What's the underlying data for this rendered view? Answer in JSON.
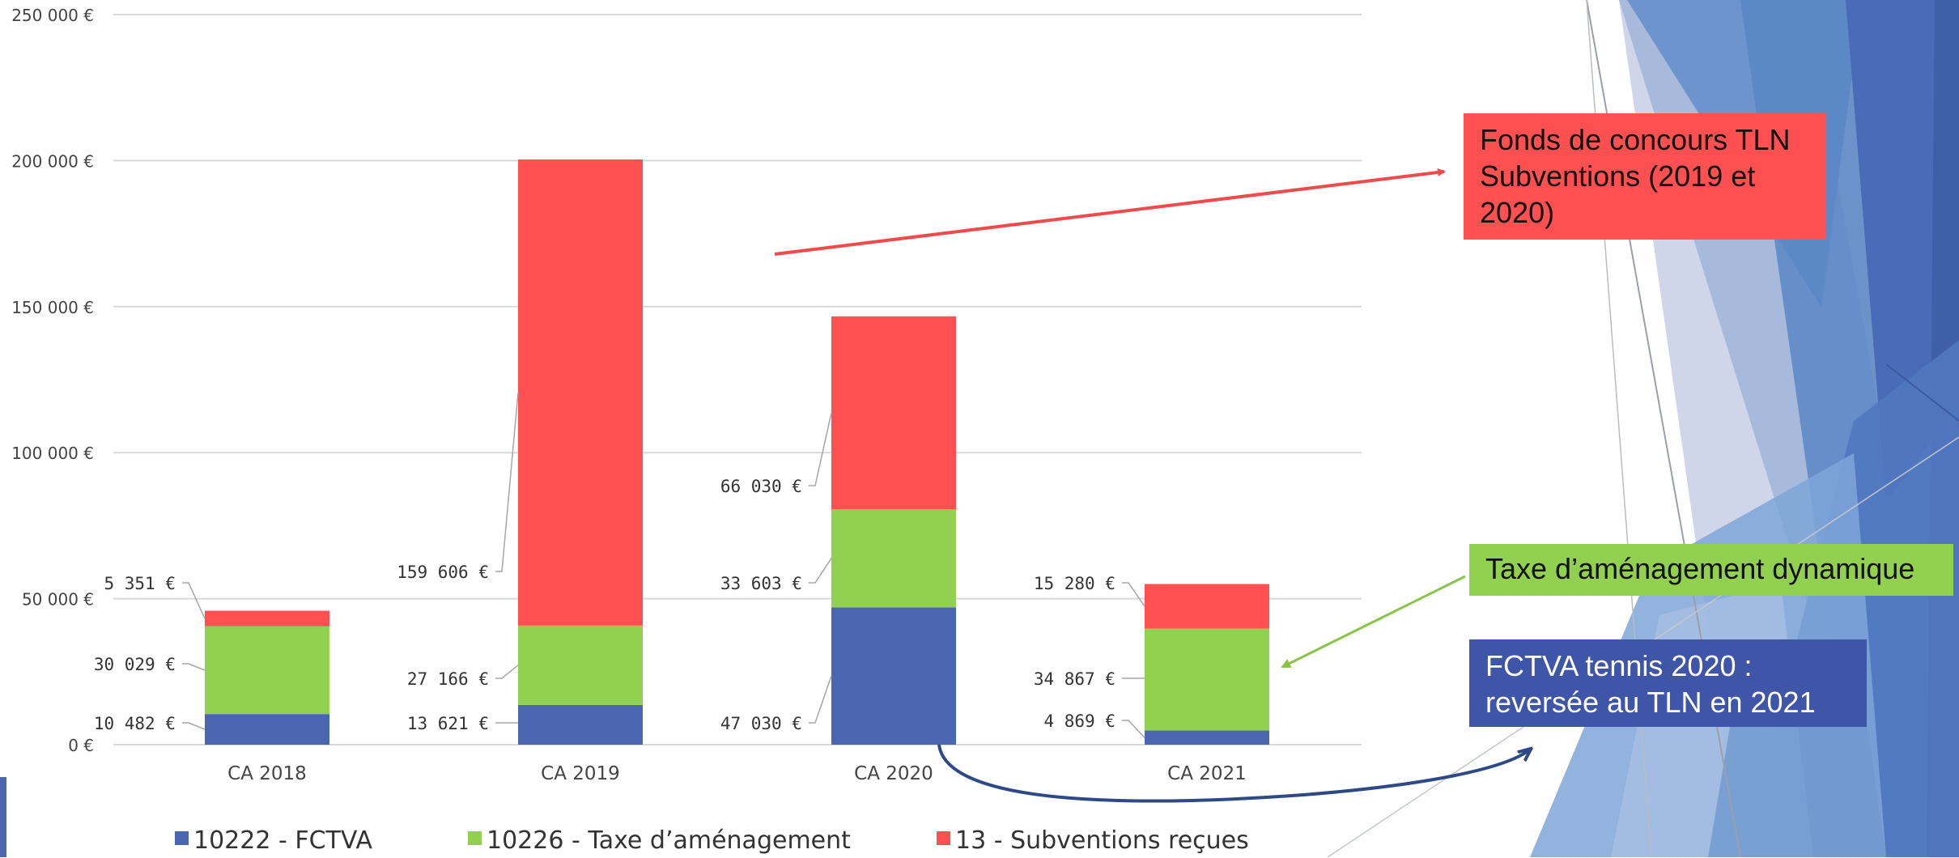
{
  "chart_data": {
    "type": "bar",
    "stacked": true,
    "categories": [
      "CA 2018",
      "CA 2019",
      "CA 2020",
      "CA 2021"
    ],
    "series": [
      {
        "name": "10222 - FCTVA",
        "color": "#4a66b0",
        "values": [
          10482,
          13621,
          47030,
          4869
        ],
        "labels": [
          "10 482 €",
          "13 621 €",
          "47 030 €",
          "4 869 €"
        ]
      },
      {
        "name": "10226 - Taxe d’aménagement",
        "color": "#92d050",
        "values": [
          30029,
          27166,
          33603,
          34867
        ],
        "labels": [
          "30 029 €",
          "27 166 €",
          "33 603 €",
          "34 867 €"
        ]
      },
      {
        "name": "13 - Subventions reçues",
        "color": "#fe5050",
        "values": [
          5351,
          159606,
          66030,
          15280
        ],
        "labels": [
          "5 351 €",
          "159 606 €",
          "66 030 €",
          "15 280 €"
        ]
      }
    ],
    "ylim": [
      0,
      250000
    ],
    "yticks": [
      0,
      50000,
      100000,
      150000,
      200000,
      250000
    ],
    "ytick_labels": [
      "0 €",
      "50 000 €",
      "100 000 €",
      "150 000 €",
      "200 000 €",
      "250 000 €"
    ],
    "grid": true,
    "legend_position": "bottom"
  },
  "annotations": {
    "subventions": [
      "Fonds de concours TLN",
      "Subventions (2019 et",
      "2020)"
    ],
    "taxe": "Taxe d’aménagement dynamique",
    "fctva": [
      "FCTVA tennis 2020 :",
      "reversée au TLN en 2021"
    ]
  },
  "colors": {
    "fctva": "#4a66b0",
    "taxe": "#92d050",
    "subventions": "#fe5050",
    "arrow_red": "#f04a4a",
    "arrow_green": "#8bc34a",
    "arrow_blue": "#2e4a86"
  }
}
